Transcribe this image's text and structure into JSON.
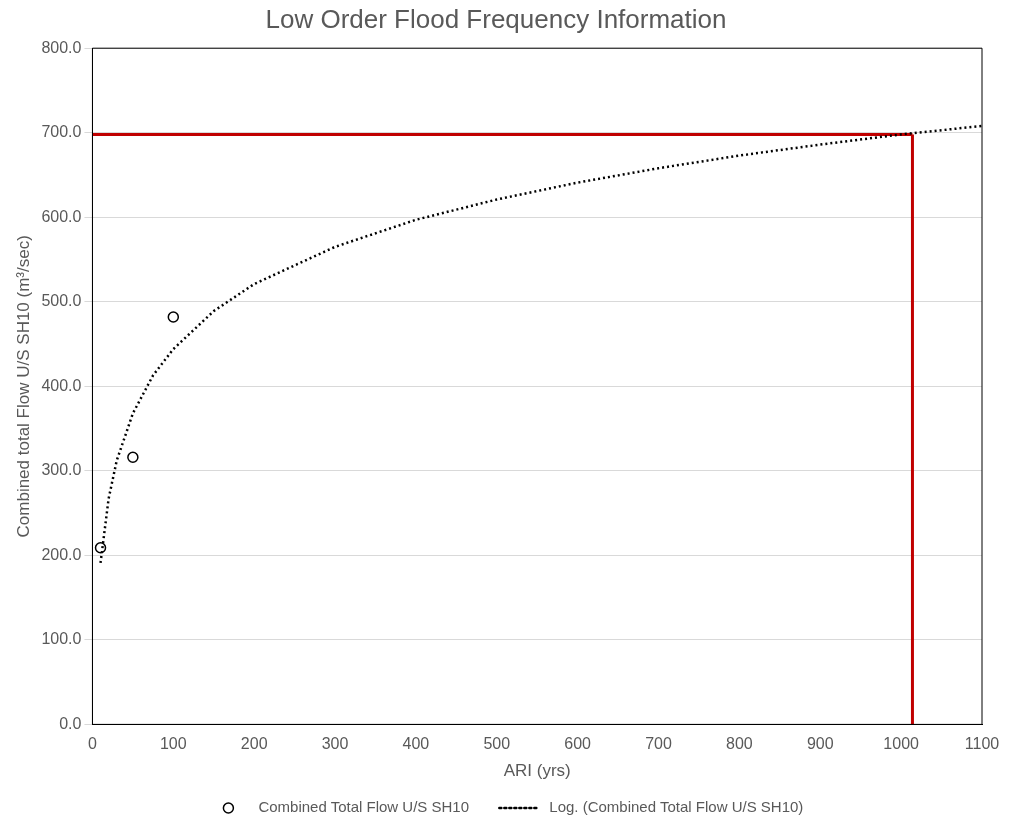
{
  "chart_data": {
    "type": "scatter",
    "title": "Low Order Flood Frequency Information",
    "xlabel": "ARI (yrs)",
    "ylabel": "Combined total Flow U/S SH10 (m³/sec)",
    "xlim": [
      0,
      1100
    ],
    "xticks": [
      0,
      100,
      200,
      300,
      400,
      500,
      600,
      700,
      800,
      900,
      1000,
      1100
    ],
    "ylim": [
      0,
      800
    ],
    "yticks": [
      {
        "value": 0,
        "label": "0.0"
      },
      {
        "value": 100,
        "label": "100.0"
      },
      {
        "value": 200,
        "label": "200.0"
      },
      {
        "value": 300,
        "label": "300.0"
      },
      {
        "value": 400,
        "label": "400.0"
      },
      {
        "value": 500,
        "label": "500.0"
      },
      {
        "value": 600,
        "label": "600.0"
      },
      {
        "value": 700,
        "label": "700.0"
      },
      {
        "value": 800,
        "label": "800.0"
      }
    ],
    "grid": "y",
    "legend": "bottom",
    "series": [
      {
        "name": "Combined Total Flow U/S SH10",
        "marker": "circle",
        "color": "#000000",
        "x": [
          10,
          50,
          100
        ],
        "values": [
          209,
          316,
          482
        ]
      },
      {
        "name": "Log. (Combined Total Flow U/S SH10)",
        "type": "line",
        "line_style": "dotted",
        "marker": "none",
        "color": "#000000",
        "x": [
          10,
          20,
          30,
          50,
          75,
          100,
          150,
          200,
          300,
          400,
          500,
          600,
          700,
          800,
          900,
          1000,
          1100
        ],
        "values": [
          191,
          267,
          312,
          368,
          413,
          444,
          489,
          521,
          565,
          597,
          621,
          641,
          658,
          673,
          686,
          698,
          708
        ]
      },
      {
        "type": "line",
        "line_style": "solid",
        "marker": "none",
        "color": "#c00000",
        "x": [
          0,
          1014
        ],
        "values": [
          698,
          698
        ]
      },
      {
        "type": "line",
        "line_style": "solid",
        "marker": "none",
        "color": "#c00000",
        "x": [
          1014,
          1014
        ],
        "values": [
          0,
          698
        ]
      }
    ]
  }
}
